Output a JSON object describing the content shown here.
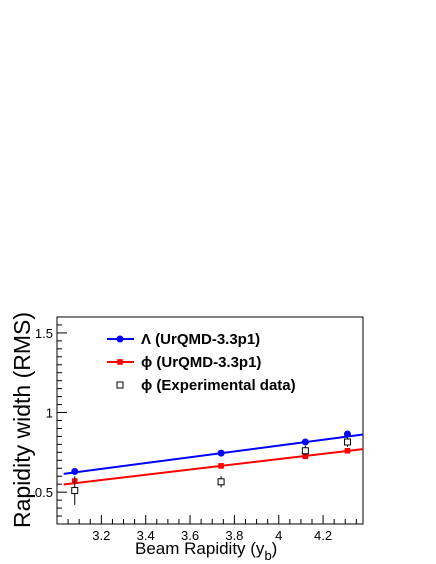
{
  "chart_data": {
    "type": "scatter",
    "xlabel": "Beam Rapidity (y",
    "xlabel_sub": "b",
    "xlabel_close": ")",
    "ylabel": "Rapidity width (RMS)",
    "xlim": [
      3.0,
      4.38
    ],
    "ylim": [
      0.3,
      1.6
    ],
    "x_ticks": [
      3.2,
      3.4,
      3.6,
      3.8,
      4.0,
      4.2
    ],
    "x_tick_labels": [
      "3.2",
      "3.4",
      "3.6",
      "3.8",
      "4",
      "4.2"
    ],
    "y_ticks": [
      0.5,
      1.0,
      1.5
    ],
    "y_tick_labels": [
      "0.5",
      "1",
      "1.5"
    ],
    "grid": false,
    "legend_position": "top-left",
    "series": [
      {
        "name": "Λ (UrQMD-3.3p1)",
        "color": "#0000ff",
        "marker": "circle",
        "points": [
          {
            "x": 3.08,
            "y": 0.63
          },
          {
            "x": 3.74,
            "y": 0.745
          },
          {
            "x": 4.12,
            "y": 0.815
          },
          {
            "x": 4.31,
            "y": 0.865
          }
        ],
        "fit": {
          "x": [
            3.03,
            4.38
          ],
          "y": [
            0.615,
            0.862
          ]
        }
      },
      {
        "name": "ϕ (UrQMD-3.3p1)",
        "color": "#ff0000",
        "marker": "square",
        "points": [
          {
            "x": 3.08,
            "y": 0.57
          },
          {
            "x": 3.74,
            "y": 0.665
          },
          {
            "x": 4.12,
            "y": 0.725
          },
          {
            "x": 4.31,
            "y": 0.76
          }
        ],
        "fit": {
          "x": [
            3.03,
            4.38
          ],
          "y": [
            0.548,
            0.77
          ]
        }
      },
      {
        "name": "ϕ (Experimental data)",
        "color": "#000000",
        "marker": "open-square",
        "points": [
          {
            "x": 3.08,
            "y": 0.51,
            "err": 0.09
          },
          {
            "x": 3.74,
            "y": 0.565,
            "err": 0.035
          },
          {
            "x": 4.12,
            "y": 0.76,
            "err": 0.03
          },
          {
            "x": 4.31,
            "y": 0.815,
            "err": 0.03
          }
        ]
      }
    ]
  }
}
